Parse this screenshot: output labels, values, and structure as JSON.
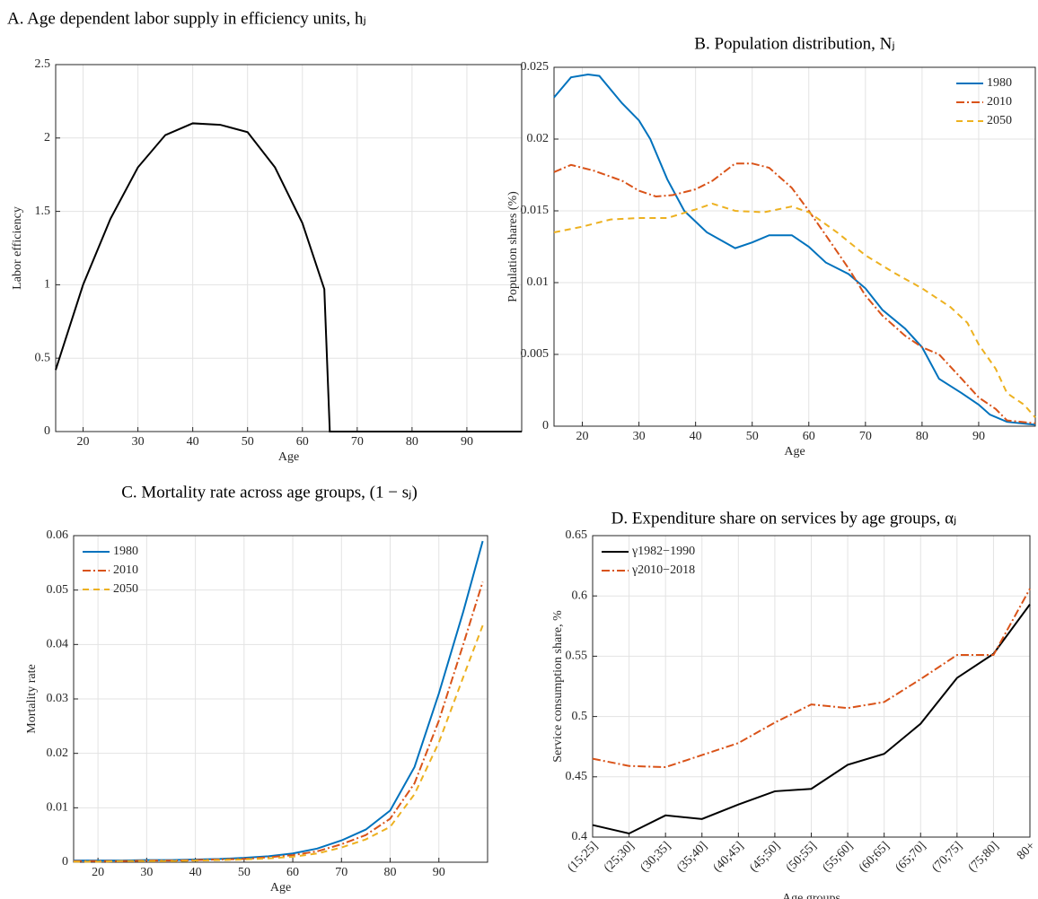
{
  "chart_data": [
    {
      "type": "line",
      "title": "A. Age dependent labor supply in efficiency units, hⱼ",
      "xlabel": "Age",
      "ylabel": "Labor efficiency",
      "x": [
        15,
        20,
        25,
        30,
        35,
        40,
        45,
        50,
        55,
        60,
        64,
        65,
        70,
        80,
        90,
        100
      ],
      "values": [
        0.42,
        1.0,
        1.45,
        1.8,
        2.02,
        2.1,
        2.09,
        2.04,
        1.8,
        1.42,
        0.97,
        0,
        0,
        0,
        0,
        0
      ],
      "color": "#000000",
      "xlim": [
        15,
        100
      ],
      "ylim": [
        0,
        2.5
      ],
      "xticks": [
        20,
        30,
        40,
        50,
        60,
        70,
        80,
        90
      ],
      "yticks": [
        0,
        0.5,
        1,
        1.5,
        2,
        2.5
      ],
      "grid": true
    },
    {
      "type": "line",
      "title": "B. Population distribution, Nⱼ",
      "xlabel": "Age",
      "ylabel": "Population shares (%)",
      "series": [
        {
          "name": "1980",
          "color": "#0072bd",
          "linestyle": "solid",
          "x": [
            15,
            18,
            21,
            23,
            27,
            30,
            32,
            35,
            38,
            42,
            47,
            50,
            53,
            57,
            60,
            63,
            67,
            70,
            73,
            77,
            80,
            83,
            87,
            90,
            92,
            95,
            100
          ],
          "values": [
            0.0229,
            0.0243,
            0.0245,
            0.0244,
            0.0225,
            0.0213,
            0.02,
            0.0172,
            0.015,
            0.0135,
            0.0124,
            0.0128,
            0.0133,
            0.0133,
            0.0125,
            0.0114,
            0.0106,
            0.0096,
            0.0081,
            0.0068,
            0.0055,
            0.0033,
            0.0023,
            0.0015,
            0.0008,
            0.0003,
            0.0001
          ]
        },
        {
          "name": "2010",
          "color": "#d95319",
          "linestyle": "dashdot",
          "x": [
            15,
            18,
            22,
            27,
            30,
            33,
            36,
            40,
            43,
            47,
            50,
            53,
            57,
            60,
            63,
            67,
            70,
            73,
            77,
            80,
            83,
            87,
            90,
            93,
            95,
            100
          ],
          "values": [
            0.0177,
            0.0182,
            0.0178,
            0.0171,
            0.0164,
            0.016,
            0.0161,
            0.0165,
            0.0171,
            0.0183,
            0.0183,
            0.018,
            0.0166,
            0.015,
            0.0133,
            0.011,
            0.0091,
            0.0077,
            0.0063,
            0.0055,
            0.005,
            0.0033,
            0.002,
            0.0012,
            0.0004,
            0.0002
          ]
        },
        {
          "name": "2050",
          "color": "#edb120",
          "linestyle": "dashed",
          "x": [
            15,
            20,
            25,
            30,
            35,
            40,
            43,
            47,
            52,
            57,
            60,
            65,
            70,
            75,
            80,
            85,
            88,
            90,
            93,
            95,
            98,
            100
          ],
          "values": [
            0.0135,
            0.0139,
            0.0144,
            0.0145,
            0.0145,
            0.0151,
            0.0155,
            0.015,
            0.0149,
            0.0153,
            0.0149,
            0.0135,
            0.0119,
            0.0107,
            0.0096,
            0.0083,
            0.0072,
            0.0057,
            0.004,
            0.0023,
            0.0015,
            0.0006
          ]
        }
      ],
      "xlim": [
        15,
        100
      ],
      "ylim": [
        0,
        0.025
      ],
      "xticks": [
        20,
        30,
        40,
        50,
        60,
        70,
        80,
        90
      ],
      "yticks": [
        0,
        0.005,
        0.01,
        0.015,
        0.02,
        0.025
      ],
      "grid": true,
      "legend": "upper right"
    },
    {
      "type": "line",
      "title": "C. Mortality rate across age groups, (1 − sⱼ)",
      "xlabel": "Age",
      "ylabel": "Mortality rate",
      "series": [
        {
          "name": "1980",
          "color": "#0072bd",
          "linestyle": "solid",
          "x": [
            15,
            20,
            25,
            30,
            35,
            40,
            45,
            50,
            55,
            60,
            65,
            70,
            75,
            80,
            85,
            90,
            95,
            99
          ],
          "values": [
            0.0003,
            0.0003,
            0.0003,
            0.0004,
            0.0004,
            0.0005,
            0.0006,
            0.0008,
            0.0011,
            0.0016,
            0.0025,
            0.004,
            0.006,
            0.0095,
            0.0175,
            0.031,
            0.046,
            0.059
          ]
        },
        {
          "name": "2010",
          "color": "#d95319",
          "linestyle": "dashdot",
          "x": [
            15,
            20,
            25,
            30,
            35,
            40,
            45,
            50,
            55,
            60,
            65,
            70,
            75,
            80,
            85,
            90,
            95,
            99
          ],
          "values": [
            0.0002,
            0.0002,
            0.0002,
            0.0003,
            0.0003,
            0.0004,
            0.0005,
            0.0006,
            0.0009,
            0.0013,
            0.002,
            0.0033,
            0.005,
            0.008,
            0.0145,
            0.026,
            0.04,
            0.0515
          ]
        },
        {
          "name": "2050",
          "color": "#edb120",
          "linestyle": "dashed",
          "x": [
            15,
            20,
            25,
            30,
            35,
            40,
            45,
            50,
            55,
            60,
            65,
            70,
            75,
            80,
            85,
            90,
            95,
            99
          ],
          "values": [
            0.0001,
            0.0001,
            0.0002,
            0.0002,
            0.0002,
            0.0003,
            0.0004,
            0.0005,
            0.0007,
            0.001,
            0.0016,
            0.0027,
            0.0042,
            0.0065,
            0.0125,
            0.022,
            0.034,
            0.0435
          ]
        }
      ],
      "xlim": [
        15,
        100
      ],
      "ylim": [
        0,
        0.06
      ],
      "xticks": [
        20,
        30,
        40,
        50,
        60,
        70,
        80,
        90
      ],
      "yticks": [
        0,
        0.01,
        0.02,
        0.03,
        0.04,
        0.05,
        0.06
      ],
      "grid": true,
      "legend": "upper left"
    },
    {
      "type": "line",
      "title": "D. Expenditure share on services by age groups, αⱼ",
      "xlabel": "Age groups",
      "ylabel": "Service consumption share, %",
      "categories": [
        "(15;25]",
        "(25;30]",
        "(30;35]",
        "(35;40]",
        "(40;45]",
        "(45;50]",
        "(50;55]",
        "(55;60]",
        "(60;65]",
        "(65;70]",
        "(70;75]",
        "(75;80]",
        "80+"
      ],
      "series": [
        {
          "name": "γ1982−1990",
          "color": "#000000",
          "linestyle": "solid",
          "values": [
            0.41,
            0.403,
            0.418,
            0.415,
            0.427,
            0.438,
            0.44,
            0.46,
            0.469,
            0.494,
            0.532,
            0.552,
            0.593
          ]
        },
        {
          "name": "γ2010−2018",
          "color": "#d95319",
          "linestyle": "dashdot",
          "values": [
            0.465,
            0.459,
            0.458,
            0.468,
            0.478,
            0.495,
            0.51,
            0.507,
            0.512,
            0.531,
            0.551,
            0.551,
            0.606
          ]
        }
      ],
      "ylim": [
        0.4,
        0.65
      ],
      "yticks": [
        0.4,
        0.45,
        0.5,
        0.55,
        0.6,
        0.65
      ],
      "grid": true,
      "legend": "upper left"
    }
  ]
}
